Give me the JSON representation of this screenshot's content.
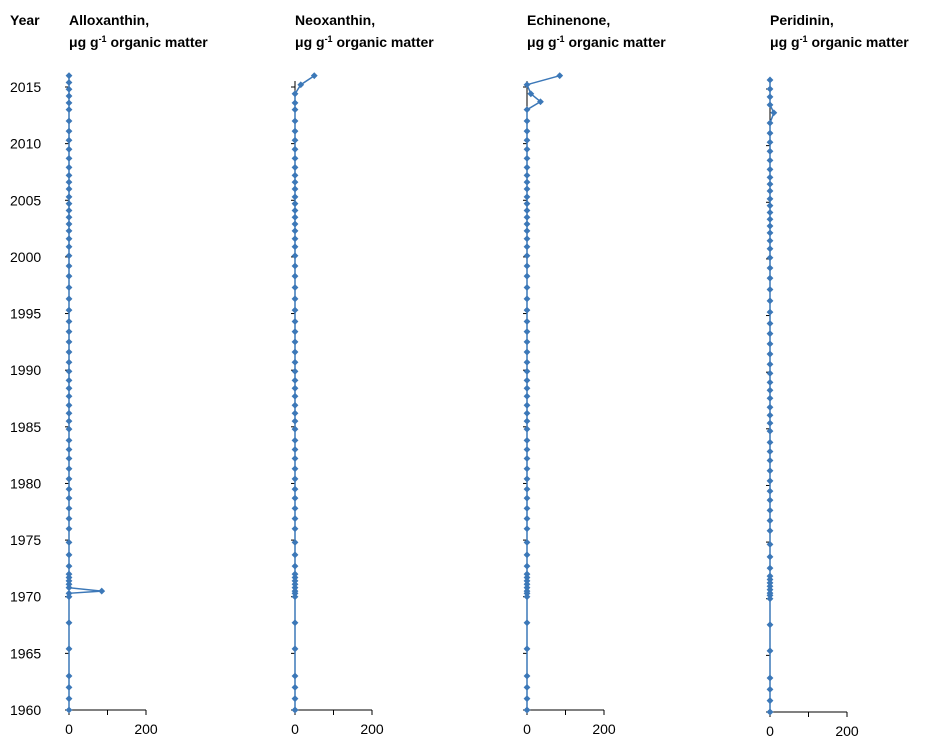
{
  "y_axis_title": "Year",
  "colors": {
    "series": "#3c78b8",
    "axis": "#000000"
  },
  "chart_data": [
    {
      "type": "scatter",
      "title_line1": "Alloxanthin,",
      "title_line2_prefix": "μg g",
      "title_line2_sup": "-1",
      "title_line2_suffix": " organic matter",
      "xlim": [
        0,
        200
      ],
      "ylim": [
        1960,
        2015
      ],
      "x_ticks": [
        "0",
        "200"
      ],
      "y_ticks": [
        "2015",
        "2010",
        "2005",
        "2000",
        "1995",
        "1990",
        "1985",
        "1980",
        "1975",
        "1970",
        "1965",
        "1960"
      ],
      "series": [
        {
          "x": [
            0,
            0,
            0,
            0,
            0,
            0,
            0,
            0,
            0,
            0,
            0,
            0,
            0,
            0,
            0,
            0,
            0,
            0,
            0,
            0,
            0,
            0,
            0,
            0,
            0,
            0,
            0,
            0,
            0,
            0,
            0,
            0,
            0,
            0,
            0,
            0,
            0,
            0,
            0,
            0,
            0,
            0,
            0,
            0,
            0,
            0,
            0,
            0,
            0,
            0,
            0,
            0,
            0,
            0,
            0,
            0,
            0,
            0,
            0,
            0,
            85,
            0,
            0,
            0,
            0,
            0,
            0,
            0,
            0
          ],
          "y": [
            2016.0,
            2015.4,
            2014.8,
            2014.2,
            2013.6,
            2013.0,
            2012.0,
            2011.1,
            2010.3,
            2009.5,
            2008.7,
            2007.9,
            2007.2,
            2006.6,
            2006.0,
            2005.3,
            2004.7,
            2004.1,
            2003.5,
            2002.9,
            2002.3,
            2001.6,
            2000.9,
            2000.1,
            1999.2,
            1998.3,
            1997.3,
            1996.3,
            1995.3,
            1994.3,
            1993.4,
            1992.5,
            1991.6,
            1990.7,
            1989.9,
            1989.1,
            1988.4,
            1987.7,
            1986.9,
            1986.2,
            1985.5,
            1984.8,
            1983.8,
            1983.0,
            1982.2,
            1981.3,
            1980.4,
            1979.5,
            1978.7,
            1977.8,
            1976.9,
            1976.0,
            1974.8,
            1973.7,
            1972.7,
            1972.0,
            1971.7,
            1971.4,
            1971.1,
            1970.8,
            1970.5,
            1970.3,
            1970.0,
            1967.7,
            1965.4,
            1963.0,
            1962.0,
            1961.0,
            1960.0
          ]
        }
      ]
    },
    {
      "type": "scatter",
      "title_line1": "Neoxanthin,",
      "title_line2_prefix": "μg g",
      "title_line2_sup": "-1",
      "title_line2_suffix": " organic matter",
      "xlim": [
        0,
        200
      ],
      "ylim": [
        1960,
        2015
      ],
      "x_ticks": [
        "0",
        "200"
      ],
      "series": [
        {
          "x": [
            50,
            15,
            0,
            0,
            0,
            0,
            0,
            0,
            0,
            0,
            0,
            0,
            0,
            0,
            0,
            0,
            0,
            0,
            0,
            0,
            0,
            0,
            0,
            0,
            0,
            0,
            0,
            0,
            0,
            0,
            0,
            0,
            0,
            0,
            0,
            0,
            0,
            0,
            0,
            0,
            0,
            0,
            0,
            0,
            0,
            0,
            0,
            0,
            0,
            0,
            0,
            0,
            0,
            0,
            0,
            0,
            0,
            0,
            0,
            0,
            0,
            0,
            0,
            0,
            0,
            0,
            0,
            0,
            0
          ],
          "y": [
            2016.0,
            2015.2,
            2014.4,
            2013.6,
            2013.0,
            2012.0,
            2011.1,
            2010.3,
            2009.5,
            2008.7,
            2007.9,
            2007.2,
            2006.6,
            2006.0,
            2005.3,
            2004.7,
            2004.1,
            2003.5,
            2002.9,
            2002.3,
            2001.6,
            2000.9,
            2000.1,
            1999.2,
            1998.3,
            1997.3,
            1996.3,
            1995.3,
            1994.3,
            1993.4,
            1992.5,
            1991.6,
            1990.7,
            1989.9,
            1989.1,
            1988.4,
            1987.7,
            1986.9,
            1986.2,
            1985.5,
            1984.8,
            1983.8,
            1983.0,
            1982.2,
            1981.3,
            1980.4,
            1979.5,
            1978.7,
            1977.8,
            1976.9,
            1976.0,
            1974.8,
            1973.7,
            1972.7,
            1972.0,
            1971.7,
            1971.4,
            1971.1,
            1970.8,
            1970.5,
            1970.3,
            1970.0,
            1967.7,
            1965.4,
            1963.0,
            1962.0,
            1961.0,
            1960.0,
            1960.0
          ]
        }
      ]
    },
    {
      "type": "scatter",
      "title_line1": "Echinenone,",
      "title_line2_prefix": "μg g",
      "title_line2_sup": "-1",
      "title_line2_suffix": " organic matter",
      "xlim": [
        0,
        200
      ],
      "ylim": [
        1960,
        2015
      ],
      "x_ticks": [
        "0",
        "200"
      ],
      "series": [
        {
          "x": [
            85,
            0,
            10,
            35,
            0,
            0,
            0,
            0,
            0,
            0,
            0,
            0,
            0,
            0,
            0,
            0,
            0,
            0,
            0,
            0,
            0,
            0,
            0,
            0,
            0,
            0,
            0,
            0,
            0,
            0,
            0,
            0,
            0,
            0,
            0,
            0,
            0,
            0,
            0,
            0,
            0,
            0,
            0,
            0,
            0,
            0,
            0,
            0,
            0,
            0,
            0,
            0,
            0,
            0,
            0,
            0,
            0,
            0,
            0,
            0,
            0,
            0,
            0,
            0,
            0,
            0,
            0,
            0,
            0
          ],
          "y": [
            2016.0,
            2015.2,
            2014.4,
            2013.7,
            2013.0,
            2012.0,
            2011.1,
            2010.3,
            2009.5,
            2008.7,
            2007.9,
            2007.2,
            2006.6,
            2006.0,
            2005.3,
            2004.7,
            2004.1,
            2003.5,
            2002.9,
            2002.3,
            2001.6,
            2000.9,
            2000.1,
            1999.2,
            1998.3,
            1997.3,
            1996.3,
            1995.3,
            1994.3,
            1993.4,
            1992.5,
            1991.6,
            1990.7,
            1989.9,
            1989.1,
            1988.4,
            1987.7,
            1986.9,
            1986.2,
            1985.5,
            1984.8,
            1983.8,
            1983.0,
            1982.2,
            1981.3,
            1980.4,
            1979.5,
            1978.7,
            1977.8,
            1976.9,
            1976.0,
            1974.8,
            1973.7,
            1972.7,
            1972.0,
            1971.7,
            1971.4,
            1971.1,
            1970.8,
            1970.5,
            1970.3,
            1970.0,
            1967.7,
            1965.4,
            1963.0,
            1962.0,
            1961.0,
            1960.0,
            1960.0
          ]
        }
      ]
    },
    {
      "type": "scatter",
      "title_line1": "Peridinin,",
      "title_line2_prefix": "μg g",
      "title_line2_sup": "-1",
      "title_line2_suffix": " organic matter",
      "xlim": [
        0,
        200
      ],
      "ylim": [
        1960,
        2015
      ],
      "x_ticks": [
        "0",
        "200"
      ],
      "series": [
        {
          "x": [
            0,
            0,
            0,
            0,
            10,
            0,
            0,
            0,
            0,
            0,
            0,
            0,
            0,
            0,
            0,
            0,
            0,
            0,
            0,
            0,
            0,
            0,
            0,
            0,
            0,
            0,
            0,
            0,
            0,
            0,
            0,
            0,
            0,
            0,
            0,
            0,
            0,
            0,
            0,
            0,
            0,
            0,
            0,
            0,
            0,
            0,
            0,
            0,
            0,
            0,
            0,
            0,
            0,
            0,
            0,
            0,
            0,
            0,
            0,
            0,
            0,
            0,
            0,
            0,
            0,
            0,
            0,
            0,
            0
          ],
          "y": [
            2015.8,
            2015.0,
            2014.3,
            2013.6,
            2012.9,
            2012.0,
            2011.1,
            2010.3,
            2009.5,
            2008.7,
            2007.9,
            2007.2,
            2006.6,
            2006.0,
            2005.3,
            2004.7,
            2004.1,
            2003.5,
            2002.9,
            2002.3,
            2001.6,
            2000.9,
            2000.1,
            1999.2,
            1998.3,
            1997.3,
            1996.3,
            1995.3,
            1994.3,
            1993.4,
            1992.5,
            1991.6,
            1990.7,
            1989.9,
            1989.1,
            1988.4,
            1987.7,
            1986.9,
            1986.2,
            1985.5,
            1984.8,
            1983.8,
            1983.0,
            1982.2,
            1981.3,
            1980.4,
            1979.5,
            1978.7,
            1977.8,
            1976.9,
            1976.0,
            1974.8,
            1973.7,
            1972.7,
            1972.0,
            1971.7,
            1971.4,
            1971.1,
            1970.8,
            1970.5,
            1970.3,
            1970.0,
            1967.7,
            1965.4,
            1963.0,
            1962.0,
            1961.0,
            1960.0,
            1960.0
          ]
        }
      ]
    }
  ]
}
